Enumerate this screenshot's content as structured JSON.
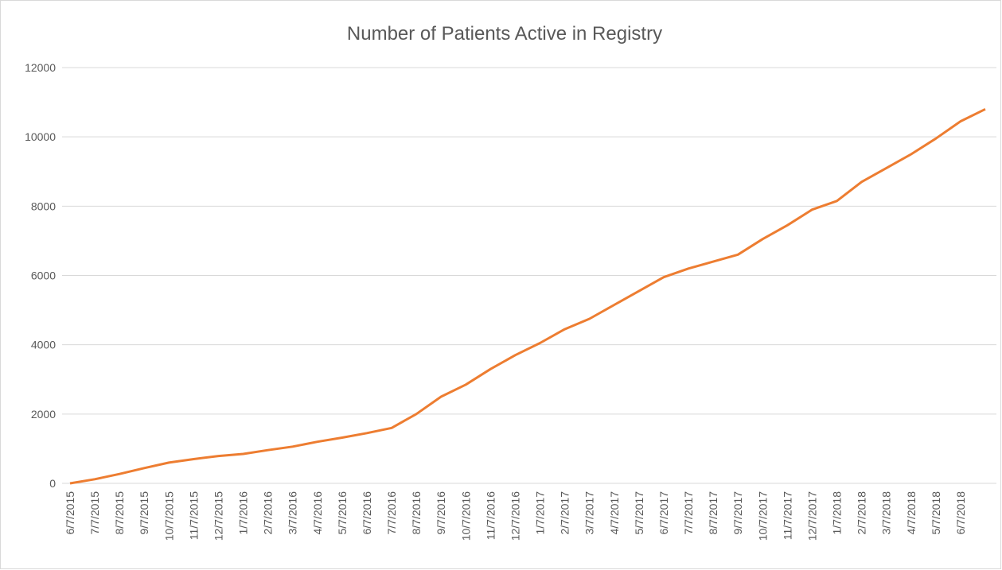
{
  "chart_data": {
    "type": "line",
    "title": "Number of Patients Active in Registry",
    "categories": [
      "6/7/2015",
      "7/7/2015",
      "8/7/2015",
      "9/7/2015",
      "10/7/2015",
      "11/7/2015",
      "12/7/2015",
      "1/7/2016",
      "2/7/2016",
      "3/7/2016",
      "4/7/2016",
      "5/7/2016",
      "6/7/2016",
      "7/7/2016",
      "8/7/2016",
      "9/7/2016",
      "10/7/2016",
      "11/7/2016",
      "12/7/2016",
      "1/7/2017",
      "2/7/2017",
      "3/7/2017",
      "4/7/2017",
      "5/7/2017",
      "6/7/2017",
      "7/7/2017",
      "8/7/2017",
      "9/7/2017",
      "10/7/2017",
      "11/7/2017",
      "12/7/2017",
      "1/7/2018",
      "2/7/2018",
      "3/7/2018",
      "4/7/2018",
      "5/7/2018",
      "6/7/2018",
      null
    ],
    "values": [
      0,
      120,
      270,
      440,
      600,
      700,
      790,
      850,
      960,
      1060,
      1200,
      1320,
      1450,
      1600,
      2000,
      2500,
      2850,
      3300,
      3700,
      4050,
      4450,
      4750,
      5150,
      5550,
      5950,
      6200,
      6400,
      6600,
      7050,
      7450,
      7900,
      8150,
      8700,
      9100,
      9500,
      9950,
      10450,
      10800
    ],
    "color": "#ed7d31",
    "ylim": [
      0,
      12000
    ],
    "yticks": [
      0,
      2000,
      4000,
      6000,
      8000,
      10000,
      12000
    ],
    "grid": true
  }
}
